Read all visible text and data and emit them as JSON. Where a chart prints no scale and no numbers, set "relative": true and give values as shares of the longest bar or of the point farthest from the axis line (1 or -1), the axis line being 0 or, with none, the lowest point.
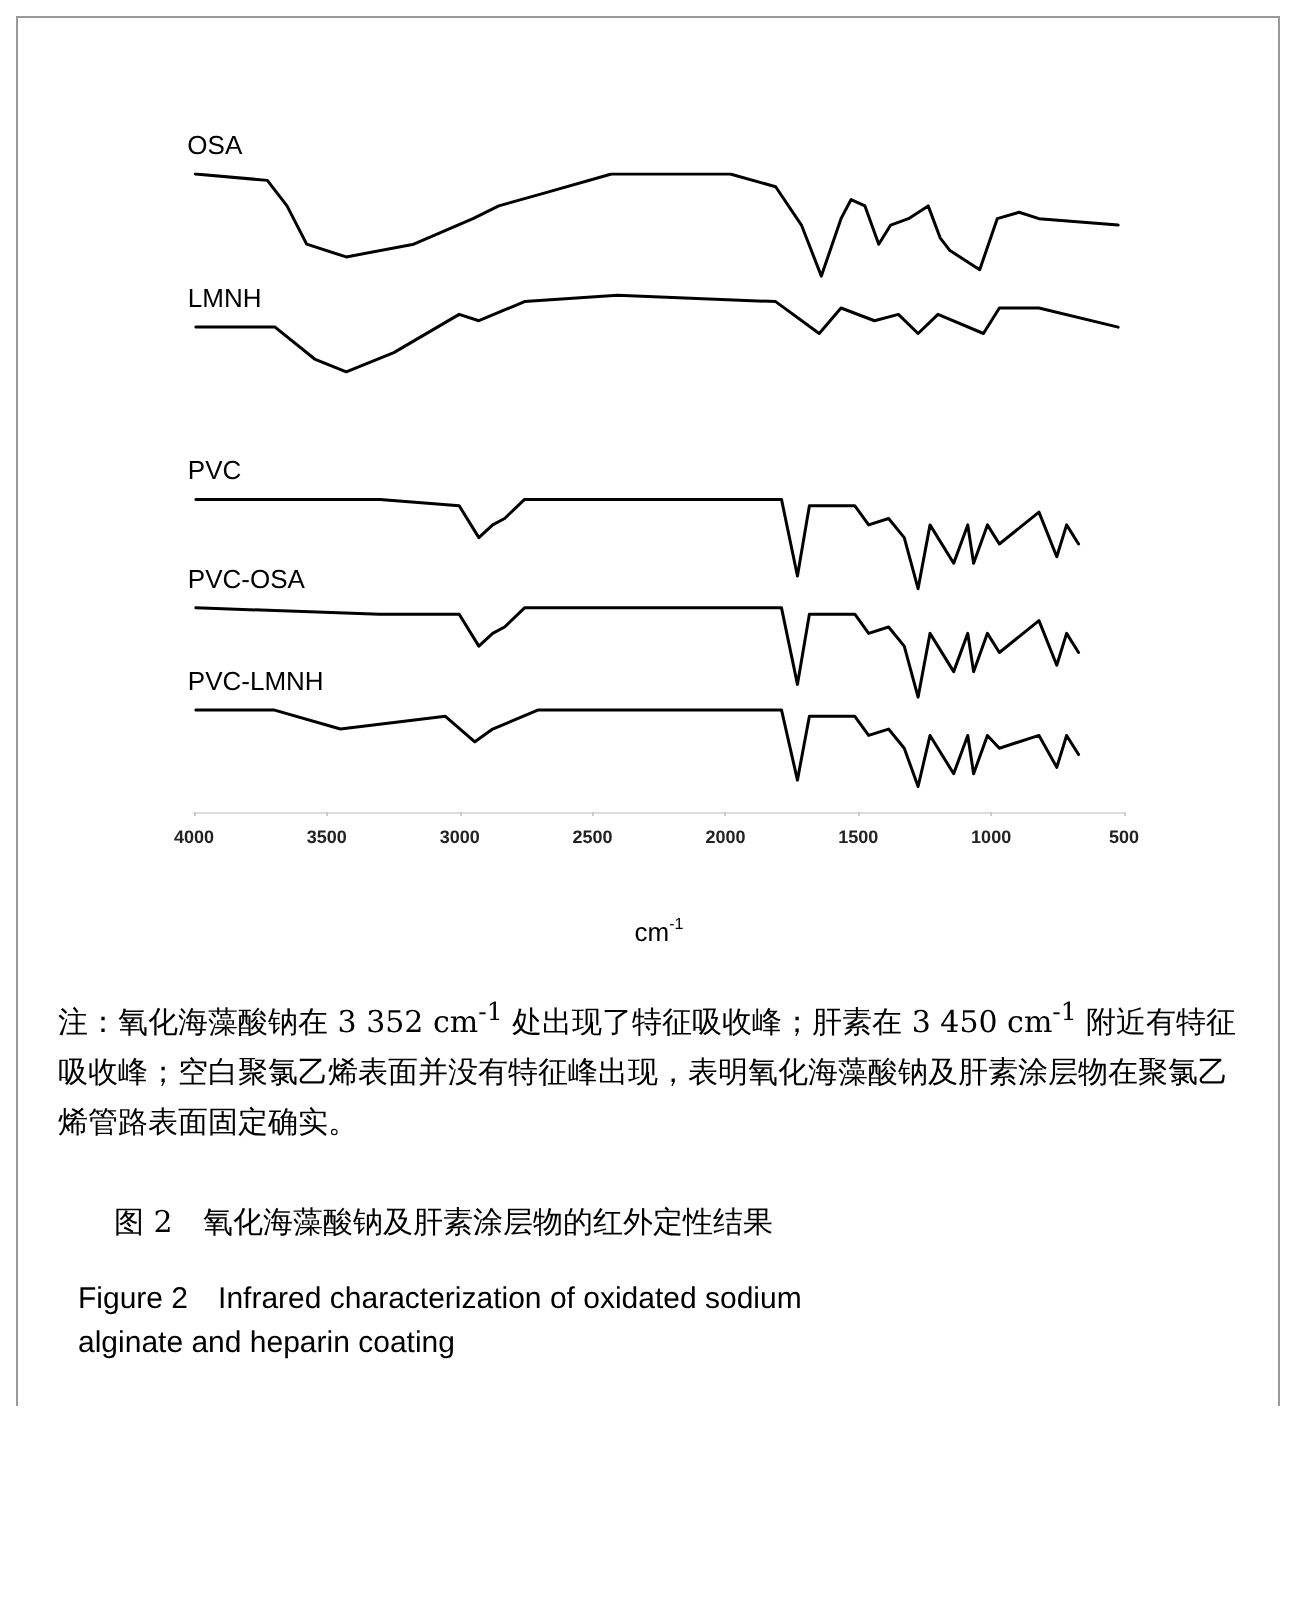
{
  "chart_data": {
    "type": "line",
    "relative": true,
    "xlabel": "cm$^{-1}$",
    "xlim": [
      4000,
      500
    ],
    "xticks": [
      4000,
      3500,
      3000,
      2500,
      2000,
      1500,
      1000,
      500
    ],
    "grid": false,
    "legend": false,
    "marker": "none",
    "line_style": "solid",
    "series": [
      {
        "name": "OSA",
        "color": "#000000",
        "x": [
          3995,
          3724,
          3650,
          3576,
          3427,
          3173,
          2950,
          2853,
          2682,
          2429,
          1982,
          1811,
          1714,
          1639,
          1565,
          1527,
          1475,
          1423,
          1378,
          1311,
          1237,
          1192,
          1155,
          1043,
          977,
          895,
          820,
          522
        ],
        "values": [
          1.0,
          0.99,
          0.95,
          0.89,
          0.87,
          0.89,
          0.93,
          0.95,
          0.97,
          1.0,
          1.0,
          0.98,
          0.92,
          0.84,
          0.93,
          0.96,
          0.95,
          0.89,
          0.92,
          0.93,
          0.95,
          0.9,
          0.88,
          0.85,
          0.93,
          0.94,
          0.93,
          0.92
        ]
      },
      {
        "name": "LMNH",
        "color": "#000000",
        "x": [
          3993,
          3695,
          3546,
          3427,
          3248,
          3002,
          2928,
          2756,
          2407,
          1811,
          1647,
          1565,
          1439,
          1349,
          1275,
          1200,
          1029,
          969,
          820,
          522
        ],
        "values": [
          0.76,
          0.76,
          0.71,
          0.69,
          0.72,
          0.78,
          0.77,
          0.8,
          0.81,
          0.8,
          0.75,
          0.79,
          0.77,
          0.78,
          0.75,
          0.78,
          0.75,
          0.79,
          0.79,
          0.76
        ]
      },
      {
        "name": "PVC",
        "color": "#000000",
        "x": [
          3993,
          3300,
          3002,
          2928,
          2876,
          2831,
          2756,
          1789,
          1729,
          1684,
          1513,
          1461,
          1386,
          1327,
          1275,
          1230,
          1141,
          1088,
          1066,
          1014,
          969,
          820,
          753,
          716,
          671
        ],
        "values": [
          0.49,
          0.49,
          0.48,
          0.43,
          0.45,
          0.46,
          0.49,
          0.49,
          0.37,
          0.48,
          0.48,
          0.45,
          0.46,
          0.43,
          0.35,
          0.45,
          0.39,
          0.45,
          0.39,
          0.45,
          0.42,
          0.47,
          0.4,
          0.45,
          0.42
        ]
      },
      {
        "name": "PVC-OSA",
        "color": "#000000",
        "x": [
          3993,
          3300,
          3002,
          2928,
          2876,
          2831,
          2756,
          1789,
          1729,
          1684,
          1513,
          1461,
          1386,
          1327,
          1275,
          1230,
          1141,
          1088,
          1066,
          1014,
          969,
          820,
          753,
          716,
          671
        ],
        "values": [
          0.32,
          0.31,
          0.31,
          0.26,
          0.28,
          0.29,
          0.32,
          0.32,
          0.2,
          0.31,
          0.31,
          0.28,
          0.29,
          0.26,
          0.18,
          0.28,
          0.22,
          0.28,
          0.22,
          0.28,
          0.25,
          0.3,
          0.23,
          0.28,
          0.25
        ]
      },
      {
        "name": "PVC-LMNH",
        "color": "#000000",
        "x": [
          3993,
          3700,
          3449,
          3054,
          2943,
          2876,
          2704,
          1789,
          1729,
          1684,
          1513,
          1461,
          1386,
          1327,
          1275,
          1230,
          1141,
          1088,
          1066,
          1014,
          969,
          820,
          753,
          716,
          671
        ],
        "values": [
          0.16,
          0.16,
          0.13,
          0.15,
          0.11,
          0.13,
          0.16,
          0.16,
          0.05,
          0.15,
          0.15,
          0.12,
          0.13,
          0.1,
          0.04,
          0.12,
          0.06,
          0.12,
          0.06,
          0.12,
          0.1,
          0.12,
          0.07,
          0.12,
          0.09
        ]
      }
    ],
    "annotations": [
      "注：氧化海藻酸钠在 3 352 cm$^{-1}$ 处出现了特征吸收峰；肝素在 3 450 cm$^{-1}$ 附近有特征吸收峰；空白聚氯乙烯表面并没有特征峰出现，表明氧化海藻酸钠及肝素涂层物在聚氯乙烯管路表面固定确实。",
      "图 2　氧化海藻酸钠及肝素涂层物的红外定性结果",
      "Figure 2　Infrared characterization of oxidated sodium alginate and heparin coating"
    ]
  }
}
